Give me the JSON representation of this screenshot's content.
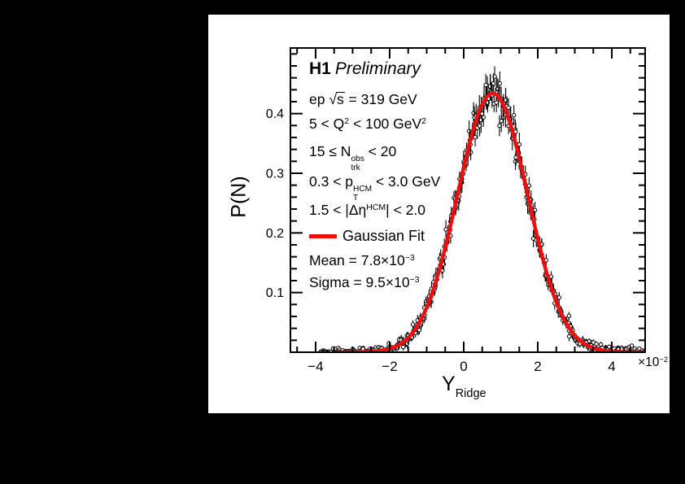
{
  "header_text": {
    "h1": "H1",
    "preliminary": "Preliminary"
  },
  "conditions": [
    "ep \\sqrt{s} = 319 GeV",
    "5 < Q^{2} < 100 GeV^{2}",
    "15 ≤ N\\ss{obs}{trk} < 20",
    "0.3 < p\\ss{HCM}{T} < 3.0 GeV",
    "1.5 < |Δη^{HCM}| < 2.0"
  ],
  "legend": {
    "label": "Gaussian Fit",
    "color": "#ee0e0e"
  },
  "fit_results": [
    "Mean = 7.8×10^{−3}",
    "Sigma = 9.5×10^{−3}"
  ],
  "chart_data": {
    "type": "scatter",
    "title": "H1 Preliminary",
    "xlabel": "Y_{Ridge}",
    "ylabel": "P(N)",
    "x_axis_multiplier": "×10^{−2}",
    "x_units": "values in units of 10^-2",
    "xlim": [
      -4.68,
      4.9
    ],
    "ylim": [
      0,
      0.51
    ],
    "x_ticks": [
      -4,
      -2,
      0,
      2,
      4
    ],
    "x_tick_labels": [
      "−4",
      "−2",
      "0",
      "2",
      "4"
    ],
    "x_minor_step": 0.5,
    "y_ticks": [
      0.1,
      0.2,
      0.3,
      0.4
    ],
    "y_tick_labels": [
      "0.1",
      "0.2",
      "0.3",
      "0.4"
    ],
    "y_minor_step": 0.02,
    "grid": false,
    "legend_position": "inside-left",
    "fit": {
      "label": "Gaussian Fit",
      "color": "#ee0e0e",
      "mean": 0.0078,
      "sigma": 0.0095,
      "mean_e2": 0.78,
      "sigma_e2": 0.95,
      "amplitude": 0.434,
      "x_start_e2": -3.52,
      "x_end_e2": 4.9,
      "line_width": 4.5
    },
    "points_model": {
      "marker": "open-circle",
      "marker_radius": 2.2,
      "marker_fill": "#ffffff",
      "marker_stroke": "#000000",
      "n": 430,
      "x_start_e2": -3.85,
      "x_end_e2": 4.88,
      "x_jitter_e2": 0.07,
      "noise_base": 0.0035,
      "noise_peak": 0.013,
      "err_base": 0.003,
      "err_peak": 0.015,
      "seed": 12
    }
  }
}
